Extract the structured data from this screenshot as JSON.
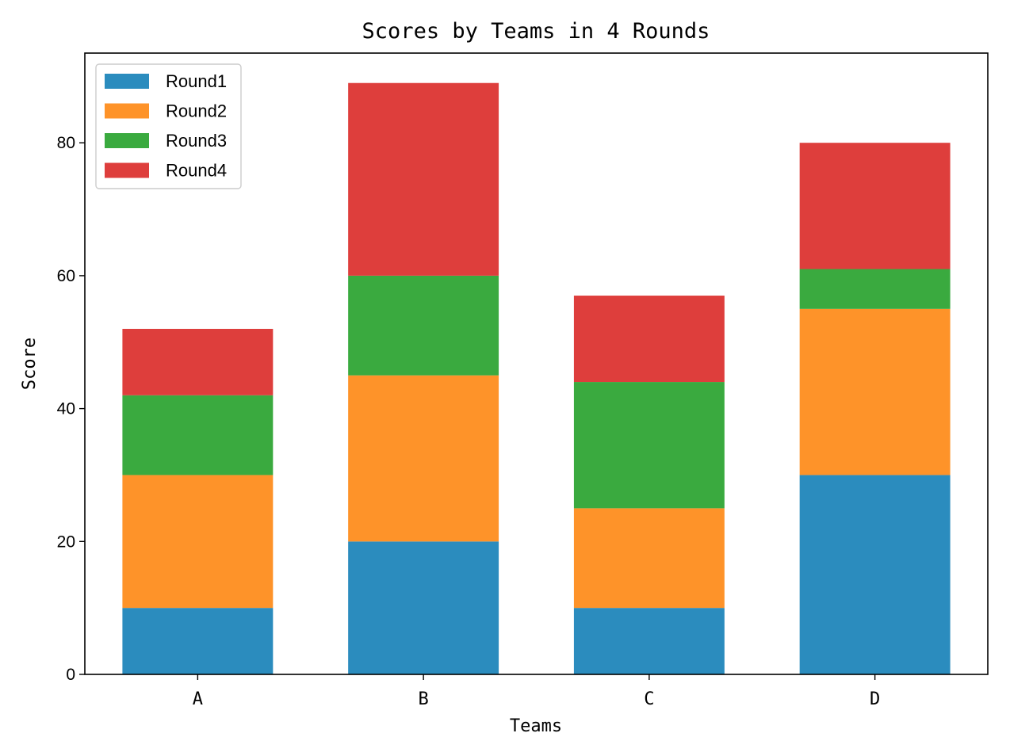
{
  "chart_data": {
    "type": "bar",
    "stacked": true,
    "title": "Scores by Teams in 4 Rounds",
    "xlabel": "Teams",
    "ylabel": "Score",
    "categories": [
      "A",
      "B",
      "C",
      "D"
    ],
    "ylim": [
      0,
      93.5
    ],
    "yticks": [
      "0",
      "20",
      "40",
      "60",
      "80"
    ],
    "grid": false,
    "legend_position": "top-left",
    "series": [
      {
        "name": "Round1",
        "color": "#2b8cbe",
        "values": [
          10,
          20,
          10,
          30
        ]
      },
      {
        "name": "Round2",
        "color": "#fe9329",
        "values": [
          20,
          25,
          15,
          25
        ]
      },
      {
        "name": "Round3",
        "color": "#3aaa3f",
        "values": [
          12,
          15,
          19,
          6
        ]
      },
      {
        "name": "Round4",
        "color": "#de3e3c",
        "values": [
          10,
          29,
          13,
          19
        ]
      }
    ]
  }
}
